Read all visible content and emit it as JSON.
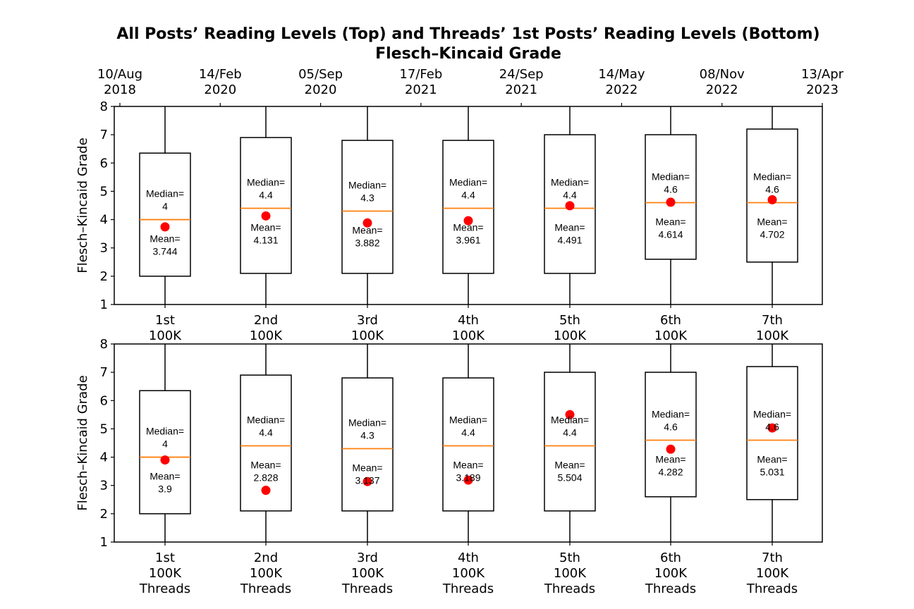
{
  "title_line1": "All Posts’ Reading Levels (Top) and Threads’ 1st Posts’ Reading Levels (Bottom)",
  "title_line2": "Flesch–Kincaid Grade",
  "colors": {
    "box": "#000000",
    "median": "#ff7f0e",
    "mean": "#ff0000"
  },
  "chart_data": [
    {
      "type": "box",
      "panel": "top",
      "ylabel": "Flesch–Kincaid Grade",
      "ylim": [
        1,
        8
      ],
      "yticks": [
        1,
        2,
        3,
        4,
        5,
        6,
        7,
        8
      ],
      "categories": [
        "1st\n100K",
        "2nd\n100K",
        "3rd\n100K",
        "4th\n100K",
        "5th\n100K",
        "6th\n100K",
        "7th\n100K"
      ],
      "top_axis_labels": [
        "10/Aug\n2018",
        "14/Feb\n2020",
        "05/Sep\n2020",
        "17/Feb\n2021",
        "24/Sep\n2021",
        "14/May\n2022",
        "08/Nov\n2022",
        "13/Apr\n2023"
      ],
      "boxes": [
        {
          "q1": 2.0,
          "median": 4.0,
          "q3": 6.35,
          "whisker_low": 1.0,
          "whisker_high": 8.0,
          "mean": 3.744,
          "median_label": "Median=\n4",
          "mean_label": "Mean=\n3.744"
        },
        {
          "q1": 2.1,
          "median": 4.4,
          "q3": 6.9,
          "whisker_low": 1.0,
          "whisker_high": 8.0,
          "mean": 4.131,
          "median_label": "Median=\n4.4",
          "mean_label": "Mean=\n4.131"
        },
        {
          "q1": 2.1,
          "median": 4.3,
          "q3": 6.8,
          "whisker_low": 1.0,
          "whisker_high": 8.0,
          "mean": 3.882,
          "median_label": "Median=\n4.3",
          "mean_label": "Mean=\n3.882"
        },
        {
          "q1": 2.1,
          "median": 4.4,
          "q3": 6.8,
          "whisker_low": 1.0,
          "whisker_high": 8.0,
          "mean": 3.961,
          "median_label": "Median=\n4.4",
          "mean_label": "Mean=\n3.961"
        },
        {
          "q1": 2.1,
          "median": 4.4,
          "q3": 7.0,
          "whisker_low": 1.0,
          "whisker_high": 8.0,
          "mean": 4.491,
          "median_label": "Median=\n4.4",
          "mean_label": "Mean=\n4.491"
        },
        {
          "q1": 2.6,
          "median": 4.6,
          "q3": 7.0,
          "whisker_low": 1.0,
          "whisker_high": 8.0,
          "mean": 4.614,
          "median_label": "Median=\n4.6",
          "mean_label": "Mean=\n4.614"
        },
        {
          "q1": 2.5,
          "median": 4.6,
          "q3": 7.2,
          "whisker_low": 1.0,
          "whisker_high": 8.0,
          "mean": 4.702,
          "median_label": "Median=\n4.6",
          "mean_label": "Mean=\n4.702"
        }
      ]
    },
    {
      "type": "box",
      "panel": "bottom",
      "ylabel": "Flesch–Kincaid Grade",
      "ylim": [
        1,
        8
      ],
      "yticks": [
        1,
        2,
        3,
        4,
        5,
        6,
        7,
        8
      ],
      "categories": [
        "1st\n100K\nThreads",
        "2nd\n100K\nThreads",
        "3rd\n100K\nThreads",
        "4th\n100K\nThreads",
        "5th\n100K\nThreads",
        "6th\n100K\nThreads",
        "7th\n100K\nThreads"
      ],
      "boxes": [
        {
          "q1": 2.0,
          "median": 4.0,
          "q3": 6.35,
          "whisker_low": 1.0,
          "whisker_high": 8.0,
          "mean": 3.9,
          "median_label": "Median=\n4",
          "mean_label": "Mean=\n3.9"
        },
        {
          "q1": 2.1,
          "median": 4.4,
          "q3": 6.9,
          "whisker_low": 1.0,
          "whisker_high": 8.0,
          "mean": 2.828,
          "median_label": "Median=\n4.4",
          "mean_label": "Mean=\n2.828"
        },
        {
          "q1": 2.1,
          "median": 4.3,
          "q3": 6.8,
          "whisker_low": 1.0,
          "whisker_high": 8.0,
          "mean": 3.137,
          "median_label": "Median=\n4.3",
          "mean_label": "Mean=\n3.137"
        },
        {
          "q1": 2.1,
          "median": 4.4,
          "q3": 6.8,
          "whisker_low": 1.0,
          "whisker_high": 8.0,
          "mean": 3.189,
          "median_label": "Median=\n4.4",
          "mean_label": "Mean=\n3.189"
        },
        {
          "q1": 2.1,
          "median": 4.4,
          "q3": 7.0,
          "whisker_low": 1.0,
          "whisker_high": 8.0,
          "mean": 5.504,
          "median_label": "Median=\n4.4",
          "mean_label": "Mean=\n5.504"
        },
        {
          "q1": 2.6,
          "median": 4.6,
          "q3": 7.0,
          "whisker_low": 1.0,
          "whisker_high": 8.0,
          "mean": 4.282,
          "median_label": "Median=\n4.6",
          "mean_label": "Mean=\n4.282"
        },
        {
          "q1": 2.5,
          "median": 4.6,
          "q3": 7.2,
          "whisker_low": 1.0,
          "whisker_high": 8.0,
          "mean": 5.031,
          "median_label": "Median=\n4.6",
          "mean_label": "Mean=\n5.031"
        }
      ]
    }
  ]
}
